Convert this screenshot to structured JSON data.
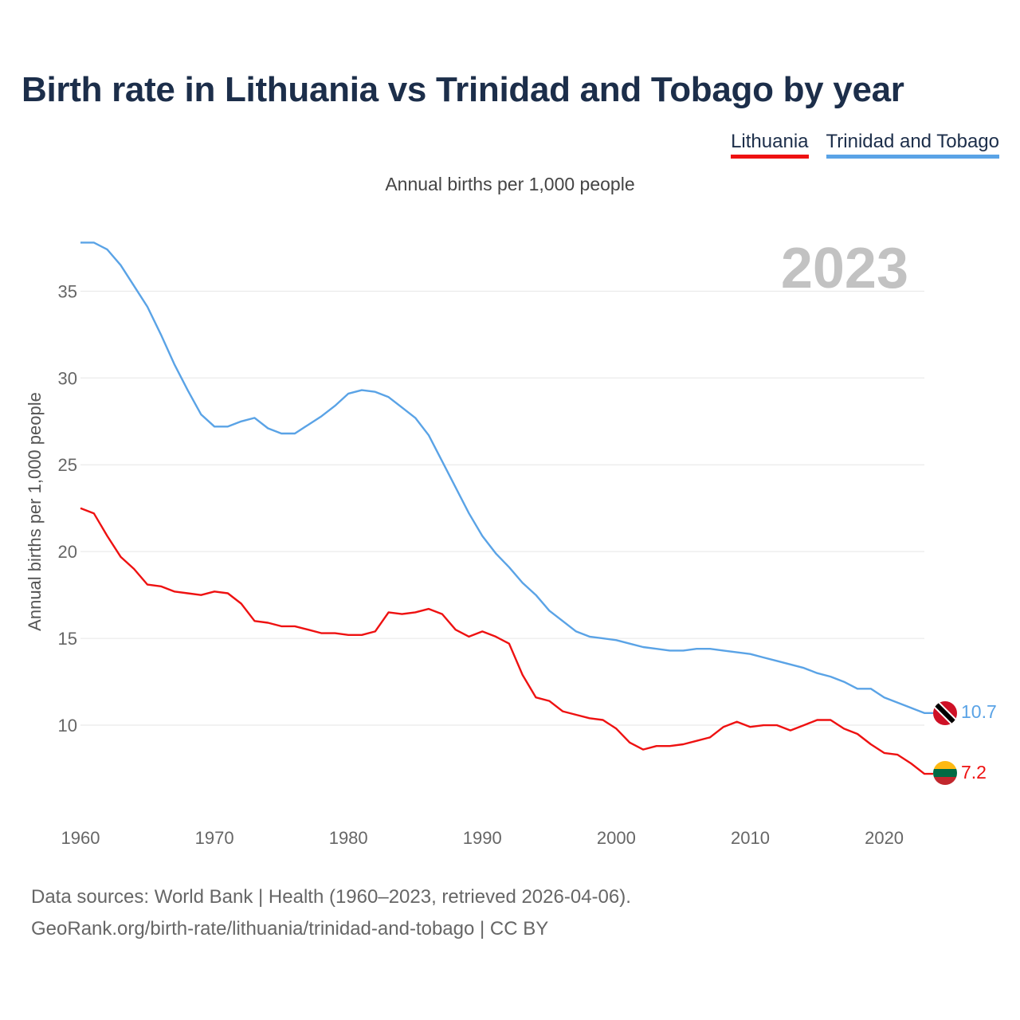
{
  "title": "Birth rate in Lithuania vs Trinidad and Tobago by year",
  "subtitle": "Annual births per 1,000 people",
  "legend": {
    "lithuania": "Lithuania",
    "trinidad": "Trinidad and Tobago"
  },
  "colors": {
    "lithuania": "#ee1111",
    "trinidad": "#5aa3e6",
    "title": "#1c2e4a"
  },
  "footer": {
    "line1": "Data sources: World Bank | Health (1960–2023, retrieved 2026-04-06).",
    "line2": "GeoRank.org/birth-rate/lithuania/trinidad-and-tobago | CC BY"
  },
  "chart_data": {
    "type": "line",
    "title": "Birth rate in Lithuania vs Trinidad and Tobago by year",
    "ylabel": "Annual births per 1,000 people",
    "xlabel": "",
    "year_label": "2023",
    "xlim": [
      1960,
      2023
    ],
    "ylim": [
      5,
      38
    ],
    "x_ticks": [
      1960,
      1970,
      1980,
      1990,
      2000,
      2010,
      2020
    ],
    "y_ticks": [
      10,
      15,
      20,
      25,
      30,
      35
    ],
    "grid": true,
    "x": [
      1960,
      1961,
      1962,
      1963,
      1964,
      1965,
      1966,
      1967,
      1968,
      1969,
      1970,
      1971,
      1972,
      1973,
      1974,
      1975,
      1976,
      1977,
      1978,
      1979,
      1980,
      1981,
      1982,
      1983,
      1984,
      1985,
      1986,
      1987,
      1988,
      1989,
      1990,
      1991,
      1992,
      1993,
      1994,
      1995,
      1996,
      1997,
      1998,
      1999,
      2000,
      2001,
      2002,
      2003,
      2004,
      2005,
      2006,
      2007,
      2008,
      2009,
      2010,
      2011,
      2012,
      2013,
      2014,
      2015,
      2016,
      2017,
      2018,
      2019,
      2020,
      2021,
      2022,
      2023
    ],
    "series": [
      {
        "name": "Trinidad and Tobago",
        "end_label": "10.7",
        "values": [
          37.8,
          37.8,
          37.4,
          36.5,
          35.3,
          34.1,
          32.5,
          30.8,
          29.3,
          27.9,
          27.2,
          27.2,
          27.5,
          27.7,
          27.1,
          26.8,
          26.8,
          27.3,
          27.8,
          28.4,
          29.1,
          29.3,
          29.2,
          28.9,
          28.3,
          27.7,
          26.7,
          25.2,
          23.7,
          22.2,
          20.9,
          19.9,
          19.1,
          18.2,
          17.5,
          16.6,
          16.0,
          15.4,
          15.1,
          15.0,
          14.9,
          14.7,
          14.5,
          14.4,
          14.3,
          14.3,
          14.4,
          14.4,
          14.3,
          14.2,
          14.1,
          13.9,
          13.7,
          13.5,
          13.3,
          13.0,
          12.8,
          12.5,
          12.1,
          12.1,
          11.6,
          11.3,
          11.0,
          10.7
        ]
      },
      {
        "name": "Lithuania",
        "end_label": "7.2",
        "values": [
          22.5,
          22.2,
          20.9,
          19.7,
          19.0,
          18.1,
          18.0,
          17.7,
          17.6,
          17.5,
          17.7,
          17.6,
          17.0,
          16.0,
          15.9,
          15.7,
          15.7,
          15.5,
          15.3,
          15.3,
          15.2,
          15.2,
          15.4,
          16.5,
          16.4,
          16.5,
          16.7,
          16.4,
          15.5,
          15.1,
          15.4,
          15.1,
          14.7,
          12.9,
          11.6,
          11.4,
          10.8,
          10.6,
          10.4,
          10.3,
          9.8,
          9.0,
          8.6,
          8.8,
          8.8,
          8.9,
          9.1,
          9.3,
          9.9,
          10.2,
          9.9,
          10.0,
          10.0,
          9.7,
          10.0,
          10.3,
          10.3,
          9.8,
          9.5,
          8.9,
          8.4,
          8.3,
          7.8,
          7.2
        ]
      }
    ]
  }
}
